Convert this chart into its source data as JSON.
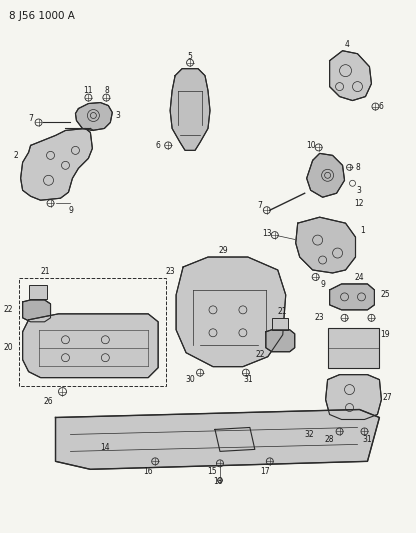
{
  "title": "8 J56 1000 A",
  "background_color": "#f5f5f0",
  "line_color": "#2a2a2a",
  "text_color": "#1a1a1a",
  "fig_width": 4.16,
  "fig_height": 5.33,
  "dpi": 100
}
